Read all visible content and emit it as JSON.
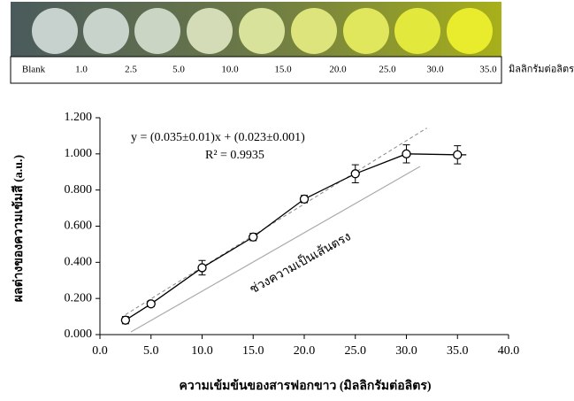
{
  "image_strip": {
    "labels": [
      "Blank",
      "1.0",
      "2.5",
      "5.0",
      "10.0",
      "15.0",
      "20.0",
      "25.0",
      "30.0",
      "35.0"
    ],
    "unit": "มิลลิกรัมต่อลิตร"
  },
  "chart_data": {
    "type": "scatter",
    "equation": "y = (0.035±0.01)x + (0.023±0.001)",
    "r_squared": "R² = 0.9935",
    "annotation": "ช่วงความเป็นเส้นตรง",
    "x_label": "ความเข้มข้นของสารฟอกขาว (มิลลิกรัมต่อลิตร)",
    "y_label": "ผลต่างของความเข้มสี (a.u.)",
    "x": [
      2.5,
      5,
      10,
      15,
      20,
      25,
      30,
      35
    ],
    "series": [
      {
        "values": [
          0.08,
          0.17,
          0.37,
          0.54,
          0.75,
          0.89,
          1.0,
          0.995
        ],
        "errors": [
          0.02,
          0.015,
          0.04,
          0.02,
          0.02,
          0.05,
          0.05,
          0.05
        ],
        "color": "#000000"
      }
    ],
    "trendline": {
      "slope": 0.035,
      "intercept": 0.023
    },
    "xlim": [
      0,
      40
    ],
    "xticks": [
      {
        "value": 0,
        "label": "0.0"
      },
      {
        "value": 5,
        "label": "5.0"
      },
      {
        "value": 10,
        "label": "10.0"
      },
      {
        "value": 15,
        "label": "15.0"
      },
      {
        "value": 20,
        "label": "20.0"
      },
      {
        "value": 25,
        "label": "25.0"
      },
      {
        "value": 30,
        "label": "30.0"
      },
      {
        "value": 35,
        "label": "35.0"
      },
      {
        "value": 40,
        "label": "40.0"
      }
    ],
    "ylim": [
      0,
      1.2
    ],
    "yticks": [
      {
        "value": 0,
        "label": "0.000"
      },
      {
        "value": 0.2,
        "label": "0.200"
      },
      {
        "value": 0.4,
        "label": "0.400"
      },
      {
        "value": 0.6,
        "label": "0.600"
      },
      {
        "value": 0.8,
        "label": "0.800"
      },
      {
        "value": 1.0,
        "label": "1.000"
      },
      {
        "value": 1.2,
        "label": "1.200"
      }
    ]
  }
}
